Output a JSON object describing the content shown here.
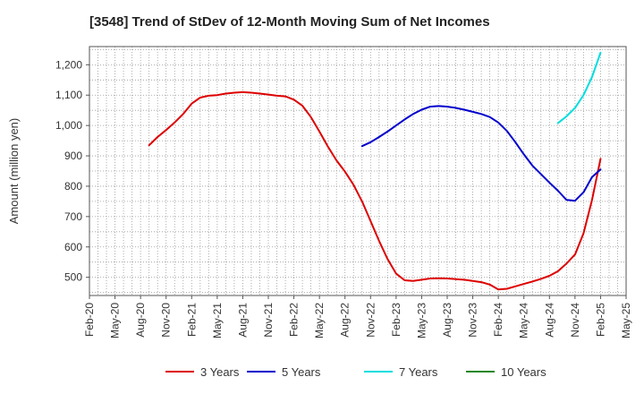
{
  "chart_data": {
    "type": "line",
    "title": "[3548]  Trend of StDev of 12-Month Moving Sum of Net Incomes",
    "ylabel": "Amount (million yen)",
    "xlabel": "",
    "ylim": [
      440,
      1260
    ],
    "yticks": [
      500,
      600,
      700,
      800,
      900,
      1000,
      1100,
      1200
    ],
    "ytick_labels": [
      "500",
      "600",
      "700",
      "800",
      "900",
      "1,000",
      "1,100",
      "1,200"
    ],
    "x_start": "2020-02",
    "x_end": "2025-05",
    "xticks": [
      "2020-02",
      "2020-05",
      "2020-08",
      "2020-11",
      "2021-02",
      "2021-05",
      "2021-08",
      "2021-11",
      "2022-02",
      "2022-05",
      "2022-08",
      "2022-11",
      "2023-02",
      "2023-05",
      "2023-08",
      "2023-11",
      "2024-02",
      "2024-05",
      "2024-08",
      "2024-11",
      "2025-02",
      "2025-05"
    ],
    "xtick_labels": [
      "Feb-20",
      "May-20",
      "Aug-20",
      "Nov-20",
      "Feb-21",
      "May-21",
      "Aug-21",
      "Nov-21",
      "Feb-22",
      "May-22",
      "Aug-22",
      "Nov-22",
      "Feb-23",
      "May-23",
      "Aug-23",
      "Nov-23",
      "Feb-24",
      "May-24",
      "Aug-24",
      "Nov-24",
      "Feb-25",
      "May-25"
    ],
    "grid": true,
    "legend_position": "bottom",
    "series": [
      {
        "name": "3 Years",
        "color": "#dd0000",
        "x": [
          "2020-09",
          "2020-10",
          "2020-11",
          "2020-12",
          "2021-01",
          "2021-02",
          "2021-03",
          "2021-04",
          "2021-05",
          "2021-06",
          "2021-07",
          "2021-08",
          "2021-09",
          "2021-10",
          "2021-11",
          "2021-12",
          "2022-01",
          "2022-02",
          "2022-03",
          "2022-04",
          "2022-05",
          "2022-06",
          "2022-07",
          "2022-08",
          "2022-09",
          "2022-10",
          "2022-11",
          "2022-12",
          "2023-01",
          "2023-02",
          "2023-03",
          "2023-04",
          "2023-05",
          "2023-06",
          "2023-07",
          "2023-08",
          "2023-09",
          "2023-10",
          "2023-11",
          "2023-12",
          "2024-01",
          "2024-02",
          "2024-03",
          "2024-04",
          "2024-05",
          "2024-06",
          "2024-07",
          "2024-08",
          "2024-09",
          "2024-10",
          "2024-11",
          "2024-12",
          "2025-01",
          "2025-02"
        ],
        "values": [
          935,
          962,
          985,
          1010,
          1038,
          1072,
          1092,
          1098,
          1100,
          1105,
          1108,
          1110,
          1108,
          1105,
          1102,
          1098,
          1096,
          1085,
          1065,
          1028,
          980,
          930,
          885,
          848,
          805,
          750,
          685,
          620,
          560,
          512,
          490,
          488,
          492,
          496,
          497,
          496,
          494,
          492,
          488,
          484,
          476,
          460,
          462,
          470,
          478,
          486,
          495,
          505,
          520,
          545,
          575,
          645,
          755,
          890
        ]
      },
      {
        "name": "5 Years",
        "color": "#0000cc",
        "x": [
          "2022-10",
          "2022-11",
          "2022-12",
          "2023-01",
          "2023-02",
          "2023-03",
          "2023-04",
          "2023-05",
          "2023-06",
          "2023-07",
          "2023-08",
          "2023-09",
          "2023-10",
          "2023-11",
          "2023-12",
          "2024-01",
          "2024-02",
          "2024-03",
          "2024-04",
          "2024-05",
          "2024-06",
          "2024-07",
          "2024-08",
          "2024-09",
          "2024-10",
          "2024-11",
          "2024-12",
          "2025-01",
          "2025-02"
        ],
        "values": [
          932,
          945,
          962,
          980,
          1000,
          1020,
          1038,
          1052,
          1062,
          1064,
          1062,
          1058,
          1052,
          1045,
          1038,
          1028,
          1010,
          982,
          945,
          905,
          868,
          840,
          812,
          785,
          755,
          752,
          780,
          830,
          855
        ]
      },
      {
        "name": "7 Years",
        "color": "#00dddd",
        "x": [
          "2024-09",
          "2024-10",
          "2024-11",
          "2024-12",
          "2025-01",
          "2025-02"
        ],
        "values": [
          1008,
          1030,
          1058,
          1100,
          1160,
          1240
        ]
      },
      {
        "name": "10 Years",
        "color": "#228822",
        "x": [],
        "values": []
      }
    ]
  }
}
